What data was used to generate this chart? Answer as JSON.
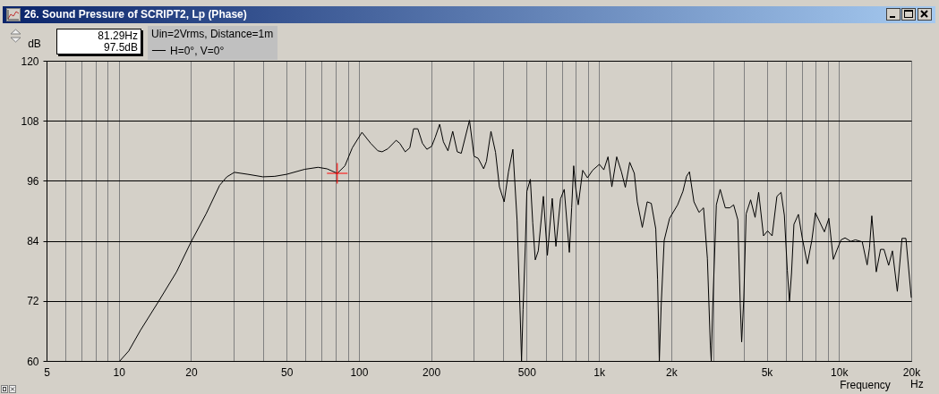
{
  "chart_data": {
    "type": "line",
    "title": "26. Sound Pressure of SCRIPT2, Lp (Phase)",
    "xlabel": "Frequency",
    "ylabel": "dB",
    "legend_title": "Uin=2Vrms, Distance=1m",
    "legend": "top left",
    "log": "x",
    "grid": true,
    "xlim": [
      5,
      20000
    ],
    "ylim": [
      60,
      120
    ],
    "yticks": [
      60,
      72,
      84,
      96,
      108,
      120
    ],
    "xticks": [
      5,
      {
        "value": 6,
        "label": null
      },
      {
        "value": 7,
        "label": null
      },
      {
        "value": 8,
        "label": null
      },
      {
        "value": 9,
        "label": null
      },
      10,
      20,
      {
        "value": 30,
        "label": null
      },
      {
        "value": 40,
        "label": null
      },
      50,
      {
        "value": 60,
        "label": null
      },
      {
        "value": 70,
        "label": null
      },
      {
        "value": 80,
        "label": null
      },
      {
        "value": 90,
        "label": null
      },
      100,
      200,
      {
        "value": 300,
        "label": null
      },
      {
        "value": 400,
        "label": null
      },
      500,
      {
        "value": 600,
        "label": null
      },
      {
        "value": 700,
        "label": null
      },
      {
        "value": 800,
        "label": null
      },
      {
        "value": 900,
        "label": null
      },
      {
        "value": 1000,
        "label": "1k"
      },
      {
        "value": 2000,
        "label": "2k"
      },
      {
        "value": 3000,
        "label": null
      },
      {
        "value": 4000,
        "label": null
      },
      {
        "value": 5000,
        "label": "5k"
      },
      {
        "value": 6000,
        "label": null
      },
      {
        "value": 7000,
        "label": null
      },
      {
        "value": 8000,
        "label": null
      },
      {
        "value": 9000,
        "label": null
      },
      {
        "value": 10000,
        "label": "10k"
      },
      {
        "value": 20000,
        "label": "20k"
      }
    ],
    "annotations": [
      "81.29Hz",
      "97.5dB",
      "Hz"
    ],
    "x": [
      10.1,
      11.0,
      12.3,
      14.6,
      17.4,
      20.0,
      23.1,
      26.3,
      28.2,
      30.3,
      34.5,
      39.8,
      44.6,
      50.0,
      59.4,
      67.6,
      73.7,
      81.3,
      87.5,
      93.9,
      103,
      112,
      120,
      125,
      132,
      143,
      148,
      156,
      163,
      169,
      176,
      184,
      192,
      201,
      208,
      217,
      225,
      235,
      246,
      257,
      267,
      289,
      302,
      314,
      331,
      340,
      355,
      371,
      385,
      403,
      420,
      438,
      456,
      470,
      476,
      483,
      494,
      501,
      518,
      530,
      543,
      559,
      587,
      610,
      639,
      662,
      692,
      717,
      753,
      770,
      785,
      799,
      820,
      856,
      896,
      941,
      1004,
      1048,
      1091,
      1132,
      1186,
      1241,
      1288,
      1344,
      1404,
      1445,
      1516,
      1589,
      1652,
      1725,
      1755,
      1785,
      1816,
      1870,
      1969,
      2127,
      2239,
      2317,
      2383,
      2488,
      2612,
      2728,
      2830,
      2911,
      2937,
      2980,
      3084,
      3200,
      3361,
      3508,
      3640,
      3790,
      3878,
      3932,
      4013,
      4105,
      4285,
      4472,
      4628,
      4848,
      5043,
      5266,
      5514,
      5737,
      5922,
      6092,
      6219,
      6343,
      6491,
      6776,
      7030,
      7383,
      7707,
      7976,
      8693,
      9075,
      9473,
      9829,
      10200,
      10600,
      11200,
      11700,
      12500,
      13100,
      13400,
      13700,
      14000,
      14300,
      14900,
      15400,
      16100,
      16700,
      17500,
      18300,
      19000,
      20000
    ],
    "series": [
      {
        "name": "H=0°, V=0°",
        "color": "#000000",
        "values": [
          60.0,
          62.0,
          66.1,
          71.8,
          77.8,
          83.8,
          89.4,
          95.1,
          96.8,
          97.7,
          97.3,
          96.8,
          96.9,
          97.3,
          98.3,
          98.7,
          98.4,
          97.5,
          99.0,
          102.6,
          105.7,
          103.5,
          102.0,
          101.8,
          102.4,
          104.1,
          103.5,
          101.8,
          102.6,
          106.4,
          106.4,
          103.5,
          102.3,
          102.9,
          104.7,
          107.3,
          103.8,
          102.0,
          105.9,
          101.8,
          101.5,
          108.1,
          100.9,
          100.5,
          98.4,
          99.9,
          105.9,
          101.7,
          94.8,
          91.8,
          97.8,
          102.3,
          88.2,
          69.1,
          60.0,
          70.3,
          83.5,
          93.9,
          96.3,
          87.6,
          80.2,
          82.0,
          92.9,
          81.1,
          92.5,
          82.9,
          92.4,
          94.3,
          81.7,
          90.6,
          99.0,
          94.8,
          91.2,
          98.1,
          96.6,
          98.1,
          99.3,
          98.2,
          100.8,
          94.8,
          100.8,
          97.8,
          94.7,
          99.7,
          97.5,
          91.8,
          86.7,
          91.8,
          91.5,
          86.4,
          76.3,
          60.0,
          70.9,
          84.1,
          88.5,
          91.2,
          93.9,
          96.9,
          97.8,
          91.8,
          89.7,
          90.6,
          80.5,
          63.2,
          60.0,
          70.9,
          91.2,
          94.3,
          90.6,
          90.6,
          91.2,
          88.2,
          71.5,
          63.8,
          72.5,
          89.4,
          92.2,
          88.7,
          93.7,
          85.0,
          86.0,
          85.0,
          92.9,
          93.7,
          89.1,
          78.1,
          71.8,
          77.5,
          87.3,
          89.3,
          84.6,
          79.4,
          84.1,
          89.6,
          85.8,
          88.5,
          80.3,
          82.3,
          84.2,
          84.6,
          83.9,
          84.2,
          83.8,
          79.2,
          82.6,
          89.0,
          83.5,
          77.8,
          82.3,
          82.3,
          79.1,
          82.0,
          73.9,
          84.5,
          84.5,
          72.7
        ]
      },
      {
        "type": "scatter",
        "color": "#ff0000",
        "marker": "cross",
        "x": [
          81.29
        ],
        "values": [
          97.5
        ]
      }
    ]
  }
}
